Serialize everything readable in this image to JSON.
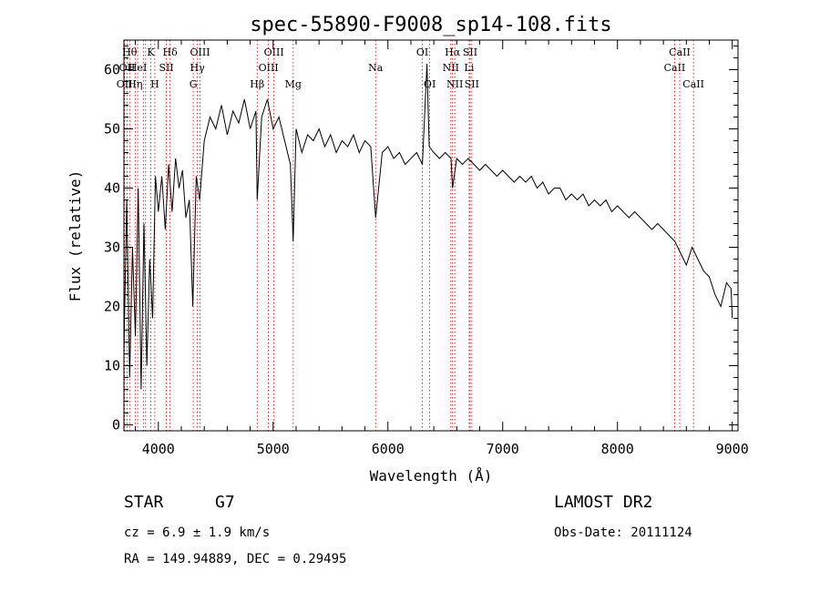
{
  "chart_data": {
    "type": "line",
    "title": "spec-55890-F9008_sp14-108.fits",
    "xlabel": "Wavelength (Å)",
    "ylabel": "Flux (relative)",
    "xlim": [
      3700,
      9050
    ],
    "ylim": [
      -1,
      65
    ],
    "xticks": [
      4000,
      5000,
      6000,
      7000,
      8000,
      9000
    ],
    "yticks": [
      0,
      10,
      20,
      30,
      40,
      50,
      60
    ],
    "grid": false,
    "line_color": "#000000",
    "marker_color": "#cc0000",
    "series": [
      {
        "x": [
          3700,
          3725,
          3750,
          3775,
          3800,
          3825,
          3850,
          3875,
          3900,
          3925,
          3950,
          3975,
          4000,
          4030,
          4060,
          4090,
          4120,
          4150,
          4180,
          4210,
          4240,
          4270,
          4300,
          4330,
          4360,
          4400,
          4450,
          4500,
          4550,
          4600,
          4650,
          4700,
          4750,
          4800,
          4850,
          4861,
          4900,
          4950,
          5000,
          5050,
          5100,
          5150,
          5175,
          5200,
          5250,
          5300,
          5350,
          5400,
          5450,
          5500,
          5550,
          5600,
          5650,
          5700,
          5750,
          5800,
          5850,
          5893,
          5950,
          6000,
          6050,
          6100,
          6150,
          6200,
          6250,
          6300,
          6340,
          6360,
          6400,
          6450,
          6500,
          6550,
          6563,
          6600,
          6650,
          6700,
          6750,
          6800,
          6850,
          6900,
          6950,
          7000,
          7050,
          7100,
          7150,
          7200,
          7250,
          7300,
          7350,
          7400,
          7450,
          7500,
          7550,
          7600,
          7650,
          7700,
          7750,
          7800,
          7850,
          7900,
          7950,
          8000,
          8050,
          8100,
          8150,
          8200,
          8250,
          8300,
          8350,
          8400,
          8450,
          8500,
          8550,
          8600,
          8650,
          8700,
          8750,
          8800,
          8850,
          8900,
          8950,
          8990,
          9000
        ],
        "y": [
          12,
          38,
          8,
          30,
          15,
          40,
          6,
          34,
          10,
          28,
          18,
          42,
          36,
          42,
          33,
          44,
          36,
          45,
          40,
          43,
          35,
          38,
          20,
          42,
          38,
          48,
          52,
          50,
          54,
          49,
          53,
          51,
          55,
          50,
          53,
          38,
          52,
          55,
          50,
          52,
          48,
          44,
          31,
          50,
          46,
          49,
          48,
          50,
          47,
          49,
          46,
          48,
          47,
          49,
          46,
          48,
          47,
          35,
          46,
          47,
          45,
          46,
          44,
          45,
          46,
          44,
          61,
          47,
          46,
          45,
          46,
          45,
          40,
          45,
          44,
          45,
          44,
          43,
          44,
          43,
          42,
          43,
          42,
          41,
          42,
          41,
          42,
          40,
          41,
          39,
          40,
          40,
          38,
          39,
          38,
          39,
          37,
          38,
          37,
          38,
          36,
          37,
          36,
          35,
          36,
          35,
          34,
          33,
          34,
          33,
          32,
          31,
          29,
          27,
          30,
          28,
          26,
          25,
          22,
          20,
          24,
          23,
          18
        ]
      }
    ],
    "lines": [
      {
        "x": 3705,
        "labels": [
          "",
          "",
          "OII"
        ]
      },
      {
        "x": 3728,
        "labels": [
          "",
          "OII",
          ""
        ]
      },
      {
        "x": 3750,
        "labels": [
          "Hθ",
          "",
          ""
        ]
      },
      {
        "x": 3798,
        "labels": [
          "",
          "",
          "Hη"
        ]
      },
      {
        "x": 3820,
        "labels": [
          "",
          "HeI",
          ""
        ]
      },
      {
        "x": 3869,
        "labels": [
          "",
          "",
          ""
        ]
      },
      {
        "x": 3889,
        "labels": [
          "",
          "",
          ""
        ]
      },
      {
        "x": 3934,
        "labels": [
          "K",
          "",
          ""
        ]
      },
      {
        "x": 3969,
        "labels": [
          "",
          "",
          "H"
        ]
      },
      {
        "x": 4070,
        "labels": [
          "",
          "SII",
          ""
        ]
      },
      {
        "x": 4102,
        "labels": [
          "Hδ",
          "",
          ""
        ]
      },
      {
        "x": 4304,
        "labels": [
          "",
          "",
          "G"
        ]
      },
      {
        "x": 4340,
        "labels": [
          "",
          "Hγ",
          ""
        ]
      },
      {
        "x": 4363,
        "labels": [
          "OIII",
          "",
          ""
        ]
      },
      {
        "x": 4861,
        "labels": [
          "",
          "",
          "Hβ"
        ]
      },
      {
        "x": 4959,
        "labels": [
          "",
          "OIII",
          ""
        ]
      },
      {
        "x": 5007,
        "labels": [
          "OIII",
          "",
          ""
        ]
      },
      {
        "x": 5175,
        "labels": [
          "",
          "",
          "Mg"
        ]
      },
      {
        "x": 5893,
        "labels": [
          "",
          "Na",
          ""
        ]
      },
      {
        "x": 6300,
        "labels": [
          "OI",
          "",
          ""
        ]
      },
      {
        "x": 6364,
        "labels": [
          "",
          "",
          "OI"
        ]
      },
      {
        "x": 6548,
        "labels": [
          "",
          "NII",
          ""
        ]
      },
      {
        "x": 6563,
        "labels": [
          "Hα",
          "",
          ""
        ]
      },
      {
        "x": 6583,
        "labels": [
          "",
          "",
          "NII"
        ]
      },
      {
        "x": 6708,
        "labels": [
          "",
          "Li",
          ""
        ]
      },
      {
        "x": 6716,
        "labels": [
          "SII",
          "",
          ""
        ]
      },
      {
        "x": 6731,
        "labels": [
          "",
          "",
          "SII"
        ]
      },
      {
        "x": 8498,
        "labels": [
          "",
          "CaII",
          ""
        ]
      },
      {
        "x": 8542,
        "labels": [
          "CaII",
          "",
          ""
        ]
      },
      {
        "x": 8662,
        "labels": [
          "",
          "",
          "CaII"
        ]
      }
    ]
  },
  "info": {
    "class": "STAR",
    "subclass": "G7",
    "cz": "cz = 6.9 ± 1.9 km/s",
    "radec": "RA = 149.94889, DEC =   0.29495",
    "survey": "LAMOST DR2",
    "obs_date": "Obs-Date: 20111124"
  }
}
